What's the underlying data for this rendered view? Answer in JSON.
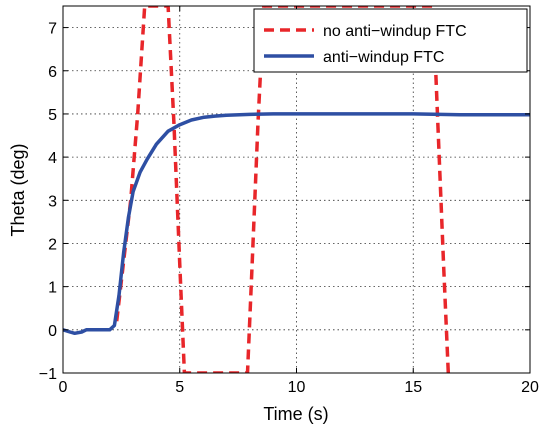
{
  "chart_data": {
    "type": "line",
    "xlabel": "Time (s)",
    "ylabel": "Theta (deg)",
    "xlim": [
      0,
      20
    ],
    "ylim": [
      -1,
      7.5
    ],
    "xticks": [
      "0",
      "5",
      "10",
      "15",
      "20"
    ],
    "yticks": [
      "−1",
      "0",
      "1",
      "2",
      "3",
      "4",
      "5",
      "6",
      "7"
    ],
    "grid": true,
    "legend_position": "top-right",
    "series": [
      {
        "name": "no anti−windup FTC",
        "color": "#e8262a",
        "style": "dashed",
        "x": [
          2.3,
          2.6,
          2.9,
          3.2,
          3.5,
          4.5,
          4.75,
          5.0,
          5.2,
          7.9,
          8.1,
          8.35,
          8.6,
          15.85,
          16.05,
          16.3,
          16.5
        ],
        "y": [
          0.2,
          1.6,
          3.0,
          5.0,
          7.5,
          7.5,
          4.8,
          1.5,
          -1.0,
          -1.0,
          1.5,
          4.8,
          7.5,
          7.5,
          4.8,
          1.5,
          -1.0
        ]
      },
      {
        "name": "anti−windup FTC",
        "color": "#2e4fa3",
        "style": "solid",
        "x": [
          0,
          0.3,
          0.5,
          0.8,
          1.0,
          1.5,
          2.0,
          2.2,
          2.4,
          2.6,
          2.8,
          3.0,
          3.3,
          3.6,
          4.0,
          4.5,
          5.0,
          5.5,
          6.0,
          6.5,
          7.0,
          8.0,
          9.0,
          10.0,
          12.0,
          15.0,
          17.0,
          20.0
        ],
        "y": [
          0.0,
          -0.05,
          -0.08,
          -0.05,
          0.0,
          0.0,
          0.0,
          0.1,
          0.8,
          1.8,
          2.6,
          3.2,
          3.65,
          3.95,
          4.3,
          4.6,
          4.75,
          4.86,
          4.92,
          4.95,
          4.97,
          4.99,
          5.0,
          5.0,
          5.0,
          5.0,
          4.98,
          4.98
        ]
      }
    ]
  }
}
